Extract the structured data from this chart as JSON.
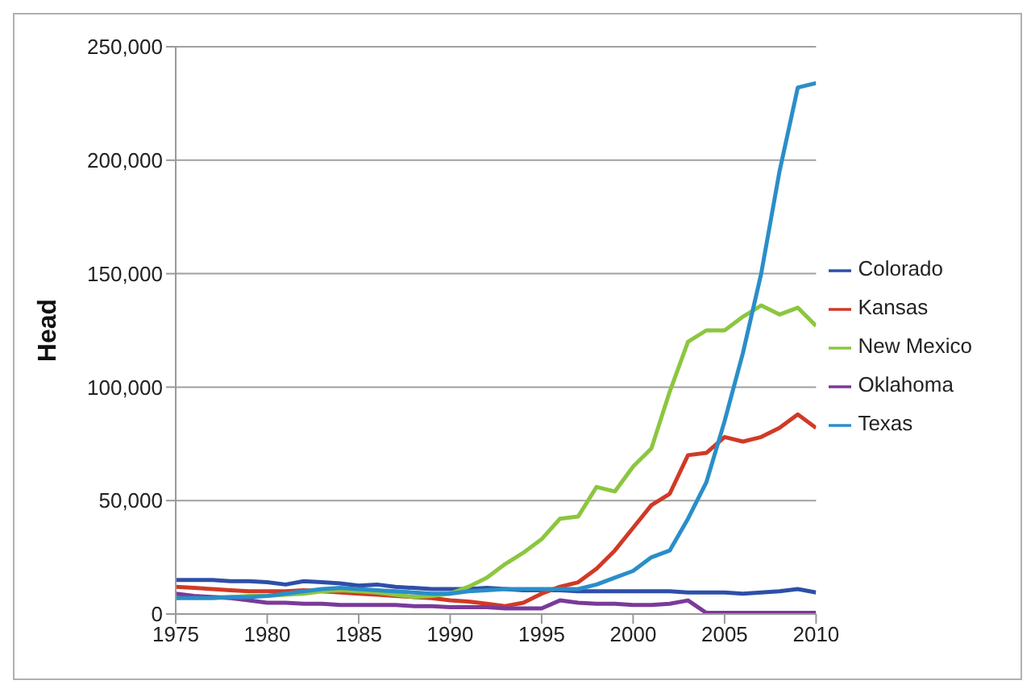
{
  "chart_data": {
    "type": "line",
    "ylabel": "Head",
    "x": [
      1975,
      1976,
      1977,
      1978,
      1979,
      1980,
      1981,
      1982,
      1983,
      1984,
      1985,
      1986,
      1987,
      1988,
      1989,
      1990,
      1991,
      1992,
      1993,
      1994,
      1995,
      1996,
      1997,
      1998,
      1999,
      2000,
      2001,
      2002,
      2003,
      2004,
      2005,
      2006,
      2007,
      2008,
      2009,
      2010
    ],
    "series": [
      {
        "name": "Colorado",
        "color": "#2e4fa8",
        "values": [
          15000,
          15000,
          15000,
          14500,
          14500,
          14000,
          13000,
          14500,
          14000,
          13500,
          12500,
          13000,
          12000,
          11500,
          11000,
          11000,
          11000,
          11500,
          11000,
          10500,
          10500,
          10500,
          10000,
          10000,
          10000,
          10000,
          10000,
          10000,
          9500,
          9500,
          9500,
          9000,
          9500,
          10000,
          11000,
          9500
        ]
      },
      {
        "name": "Kansas",
        "color": "#d03a26",
        "values": [
          12000,
          11500,
          11000,
          10500,
          10000,
          10000,
          10000,
          10500,
          10000,
          9500,
          9000,
          8500,
          8000,
          7500,
          7000,
          6000,
          5500,
          4500,
          3500,
          5000,
          9000,
          12000,
          14000,
          20000,
          28000,
          38000,
          48000,
          53000,
          70000,
          71000,
          78000,
          76000,
          78000,
          82000,
          88000,
          82000
        ]
      },
      {
        "name": "New Mexico",
        "color": "#8cc63f",
        "values": [
          8000,
          7500,
          7500,
          7500,
          8000,
          8000,
          8500,
          9000,
          10000,
          10500,
          10000,
          9500,
          8500,
          7500,
          8000,
          9000,
          12000,
          16000,
          22000,
          27000,
          33000,
          42000,
          43000,
          56000,
          54000,
          65000,
          73000,
          98000,
          120000,
          125000,
          125000,
          131000,
          136000,
          132000,
          135000,
          127000
        ]
      },
      {
        "name": "Oklahoma",
        "color": "#7a3a9a",
        "values": [
          9000,
          8000,
          7500,
          7000,
          6000,
          5000,
          5000,
          4500,
          4500,
          4000,
          4000,
          4000,
          4000,
          3500,
          3500,
          3000,
          3000,
          3000,
          2500,
          2500,
          2500,
          6000,
          5000,
          4500,
          4500,
          4000,
          4000,
          4500,
          6000,
          500,
          500,
          500,
          500,
          500,
          500,
          500
        ]
      },
      {
        "name": "Texas",
        "color": "#2a8ec8",
        "values": [
          7000,
          7000,
          7000,
          7500,
          7500,
          8000,
          9000,
          10000,
          11000,
          11500,
          11000,
          10500,
          10000,
          9500,
          9000,
          9000,
          10000,
          10500,
          11000,
          11000,
          11000,
          11000,
          11000,
          13000,
          16000,
          19000,
          25000,
          28000,
          42000,
          58000,
          85000,
          115000,
          150000,
          195000,
          232000,
          234000
        ]
      }
    ],
    "xlim": [
      1975,
      2010
    ],
    "xticks": [
      1975,
      1980,
      1985,
      1990,
      1995,
      2000,
      2005,
      2010
    ],
    "ylim": [
      0,
      250000
    ],
    "yticks": [
      {
        "value": 0,
        "label": "0"
      },
      {
        "value": 50000,
        "label": "50,000"
      },
      {
        "value": 100000,
        "label": "100,000"
      },
      {
        "value": 150000,
        "label": "150,000"
      },
      {
        "value": 200000,
        "label": "200,000"
      },
      {
        "value": 250000,
        "label": "250,000"
      }
    ],
    "grid": "y",
    "legend": "right",
    "marker": "none",
    "line_style": "solid"
  }
}
